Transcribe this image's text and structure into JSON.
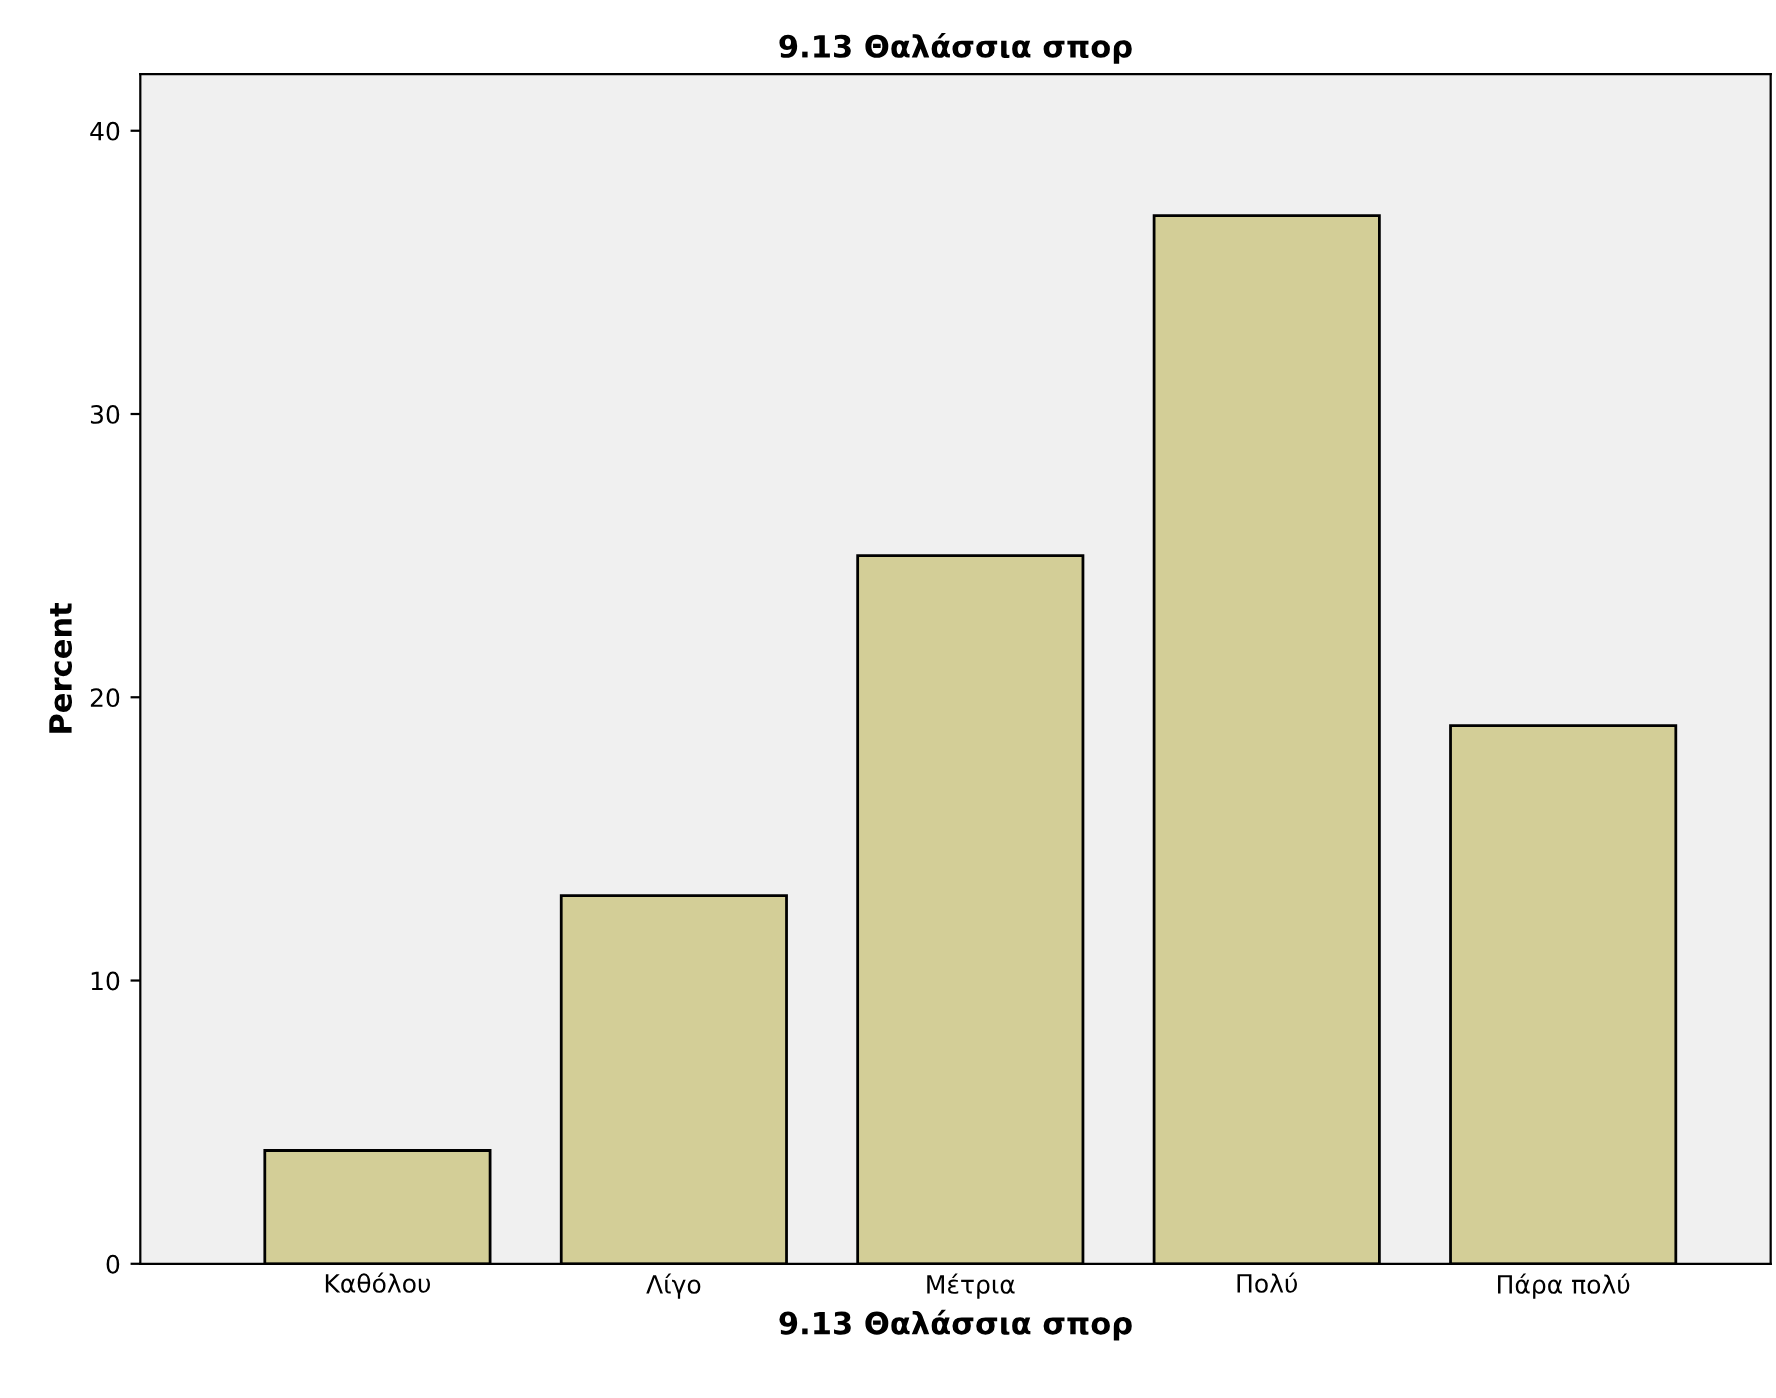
{
  "chart_data": {
    "type": "bar",
    "title": "9.13 Θαλάσσια σπορ",
    "xlabel": "9.13 Θαλάσσια σπορ",
    "ylabel": "Percent",
    "categories": [
      "Καθόλου",
      "Λίγο",
      "Μέτρια",
      "Πολύ",
      "Πάρα πολύ"
    ],
    "values": [
      4,
      13,
      25,
      37,
      19
    ],
    "color": "#d3ce97",
    "ylim": [
      0,
      42
    ],
    "yticks": [
      0,
      10,
      20,
      30,
      40
    ],
    "grid": false
  }
}
